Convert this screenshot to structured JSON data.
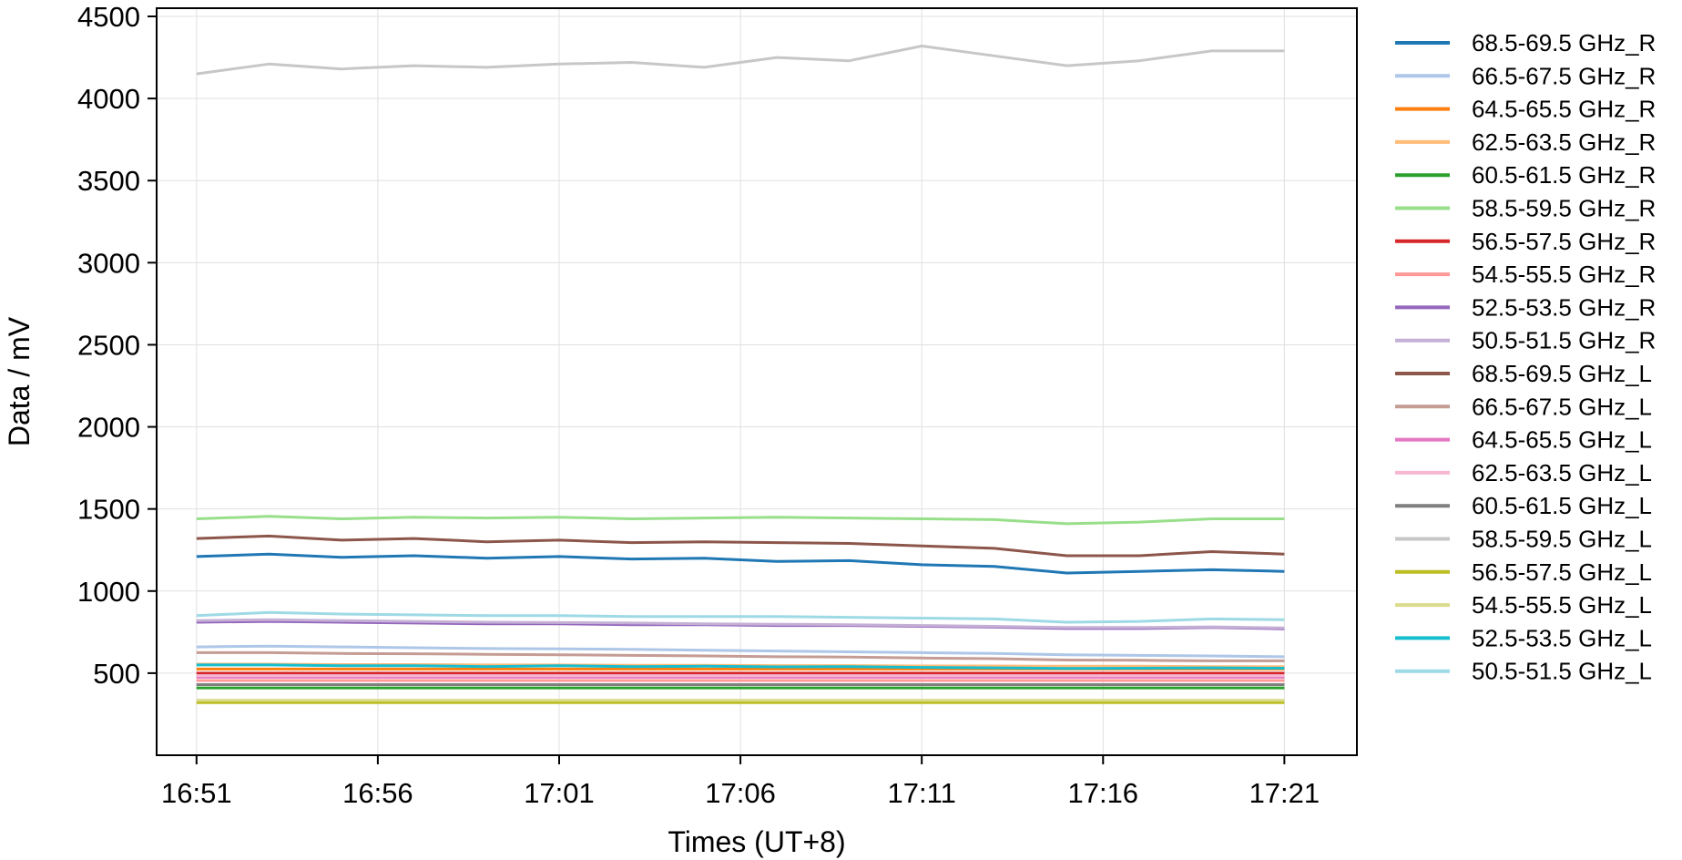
{
  "chart_data": {
    "type": "line",
    "xlabel": "Times (UT+8)",
    "ylabel": "Data / mV",
    "ylim": [
      0,
      4550
    ],
    "yticks": [
      500,
      1000,
      1500,
      2000,
      2500,
      3000,
      3500,
      4000,
      4500
    ],
    "xlim_minutes": [
      "16:49.9",
      "17:23"
    ],
    "xticks": [
      "16:51",
      "16:56",
      "17:01",
      "17:06",
      "17:11",
      "17:16",
      "17:21"
    ],
    "grid": true,
    "legend_position": "right, outside plot",
    "x": [
      "16:51",
      "16:53",
      "16:55",
      "16:57",
      "16:59",
      "17:01",
      "17:03",
      "17:05",
      "17:07",
      "17:09",
      "17:11",
      "17:13",
      "17:15",
      "17:17",
      "17:19",
      "17:21"
    ],
    "series": [
      {
        "name": "68.5-69.5 GHz_R",
        "color": "#1f77b4",
        "values": [
          1210,
          1225,
          1205,
          1215,
          1200,
          1210,
          1195,
          1200,
          1180,
          1185,
          1160,
          1150,
          1110,
          1120,
          1130,
          1120
        ]
      },
      {
        "name": "66.5-67.5 GHz_R",
        "color": "#aec7e8",
        "values": [
          660,
          665,
          660,
          655,
          650,
          648,
          645,
          640,
          635,
          630,
          625,
          620,
          612,
          608,
          605,
          600
        ]
      },
      {
        "name": "64.5-65.5 GHz_R",
        "color": "#ff7f0e",
        "values": [
          525,
          525,
          525,
          525,
          525,
          525,
          525,
          525,
          525,
          525,
          525,
          525,
          525,
          525,
          525,
          525
        ]
      },
      {
        "name": "62.5-63.5 GHz_R",
        "color": "#ffbb78",
        "values": [
          555,
          555,
          552,
          552,
          550,
          550,
          548,
          548,
          546,
          546,
          544,
          544,
          542,
          542,
          540,
          540
        ]
      },
      {
        "name": "60.5-61.5 GHz_R",
        "color": "#2ca02c",
        "values": [
          410,
          410,
          410,
          410,
          410,
          410,
          410,
          410,
          410,
          410,
          410,
          410,
          410,
          410,
          410,
          410
        ]
      },
      {
        "name": "58.5-59.5 GHz_R",
        "color": "#98df8a",
        "values": [
          1440,
          1455,
          1440,
          1450,
          1445,
          1450,
          1440,
          1445,
          1450,
          1445,
          1440,
          1435,
          1410,
          1420,
          1440,
          1440
        ]
      },
      {
        "name": "56.5-57.5 GHz_R",
        "color": "#d62728",
        "values": [
          500,
          500,
          500,
          500,
          500,
          500,
          500,
          500,
          500,
          500,
          500,
          500,
          500,
          500,
          500,
          500
        ]
      },
      {
        "name": "54.5-55.5 GHz_R",
        "color": "#ff9896",
        "values": [
          455,
          455,
          455,
          455,
          455,
          455,
          455,
          455,
          455,
          455,
          455,
          455,
          455,
          455,
          455,
          455
        ]
      },
      {
        "name": "52.5-53.5 GHz_R",
        "color": "#9467bd",
        "values": [
          810,
          815,
          810,
          805,
          800,
          800,
          795,
          795,
          790,
          790,
          785,
          780,
          772,
          772,
          778,
          770
        ]
      },
      {
        "name": "50.5-51.5 GHz_R",
        "color": "#c5b0d5",
        "values": [
          820,
          825,
          820,
          815,
          810,
          808,
          805,
          800,
          798,
          795,
          790,
          785,
          778,
          778,
          782,
          775
        ]
      },
      {
        "name": "68.5-69.5 GHz_L",
        "color": "#8c564b",
        "values": [
          1320,
          1335,
          1310,
          1320,
          1300,
          1310,
          1295,
          1300,
          1295,
          1290,
          1275,
          1260,
          1215,
          1215,
          1240,
          1225
        ]
      },
      {
        "name": "66.5-67.5 GHz_L",
        "color": "#c49c94",
        "values": [
          625,
          625,
          620,
          618,
          615,
          612,
          608,
          605,
          600,
          598,
          592,
          588,
          580,
          578,
          575,
          575
        ]
      },
      {
        "name": "64.5-65.5 GHz_L",
        "color": "#e377c2",
        "values": [
          475,
          475,
          475,
          475,
          475,
          475,
          475,
          475,
          475,
          475,
          475,
          475,
          475,
          475,
          475,
          475
        ]
      },
      {
        "name": "62.5-63.5 GHz_L",
        "color": "#f7b6d2",
        "values": [
          485,
          485,
          485,
          485,
          485,
          485,
          485,
          485,
          485,
          485,
          485,
          485,
          485,
          485,
          485,
          485
        ]
      },
      {
        "name": "60.5-61.5 GHz_L",
        "color": "#7f7f7f",
        "values": [
          430,
          430,
          430,
          430,
          430,
          430,
          430,
          430,
          430,
          430,
          430,
          430,
          430,
          430,
          430,
          430
        ]
      },
      {
        "name": "58.5-59.5 GHz_L",
        "color": "#c7c7c7",
        "values": [
          4150,
          4210,
          4180,
          4200,
          4190,
          4210,
          4220,
          4190,
          4250,
          4230,
          4320,
          4260,
          4200,
          4230,
          4290,
          4290
        ]
      },
      {
        "name": "56.5-57.5 GHz_L",
        "color": "#bcbd22",
        "values": [
          320,
          320,
          320,
          320,
          320,
          320,
          320,
          320,
          320,
          320,
          320,
          320,
          320,
          320,
          320,
          320
        ]
      },
      {
        "name": "54.5-55.5 GHz_L",
        "color": "#dbdb8d",
        "values": [
          335,
          335,
          335,
          335,
          335,
          335,
          335,
          335,
          335,
          335,
          335,
          335,
          335,
          335,
          335,
          335
        ]
      },
      {
        "name": "52.5-53.5 GHz_L",
        "color": "#17becf",
        "values": [
          550,
          550,
          545,
          545,
          540,
          545,
          540,
          542,
          538,
          540,
          535,
          532,
          528,
          530,
          532,
          530
        ]
      },
      {
        "name": "50.5-51.5 GHz_L",
        "color": "#9edae5",
        "values": [
          850,
          870,
          860,
          855,
          850,
          850,
          845,
          845,
          845,
          840,
          835,
          830,
          810,
          815,
          830,
          825
        ]
      }
    ]
  }
}
